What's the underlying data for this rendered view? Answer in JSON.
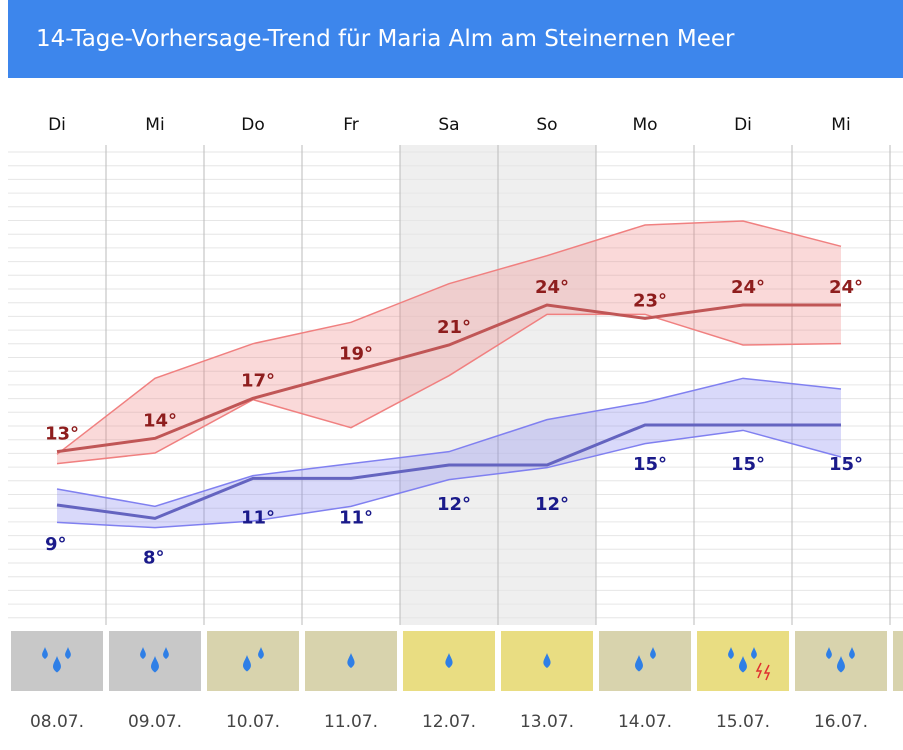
{
  "chart_data": {
    "type": "line",
    "title": "14-Tage-Vorhersage-Trend für Maria Alm am Steinernen Meer",
    "categories": [
      "Di",
      "Mi",
      "Do",
      "Fr",
      "Sa",
      "So",
      "Mo",
      "Di",
      "Mi"
    ],
    "dates": [
      "08.07.",
      "09.07.",
      "10.07.",
      "11.07.",
      "12.07.",
      "13.07.",
      "14.07.",
      "15.07.",
      "16.07."
    ],
    "ylim": [
      0,
      36
    ],
    "series": [
      {
        "color": "#c05656",
        "values": [
          13,
          14,
          17,
          19,
          21,
          24,
          23,
          24,
          24
        ],
        "value_labels": [
          "13°",
          "14°",
          "17°",
          "19°",
          "21°",
          "24°",
          "23°",
          "24°",
          "24°"
        ]
      },
      {
        "color": "#6464c0",
        "values": [
          9,
          8,
          11,
          11,
          12,
          12,
          15,
          15,
          15
        ],
        "value_labels": [
          "9°",
          "8°",
          "11°",
          "11°",
          "12°",
          "12°",
          "15°",
          "15°",
          "15°"
        ]
      }
    ],
    "bands": [
      {
        "color": "#f08080",
        "low": [
          12.1,
          12.9,
          16.9,
          14.8,
          18.7,
          23.3,
          23.3,
          21.0,
          21.1
        ],
        "high": [
          12.8,
          18.5,
          21.1,
          22.7,
          25.6,
          27.7,
          30.0,
          30.3,
          28.4
        ]
      },
      {
        "color": "#8080f0",
        "low": [
          7.7,
          7.3,
          7.8,
          8.9,
          10.9,
          11.8,
          13.6,
          14.6,
          12.6
        ],
        "high": [
          10.2,
          8.9,
          11.2,
          12.1,
          13.0,
          15.4,
          16.7,
          18.5,
          17.7
        ]
      }
    ]
  }
}
